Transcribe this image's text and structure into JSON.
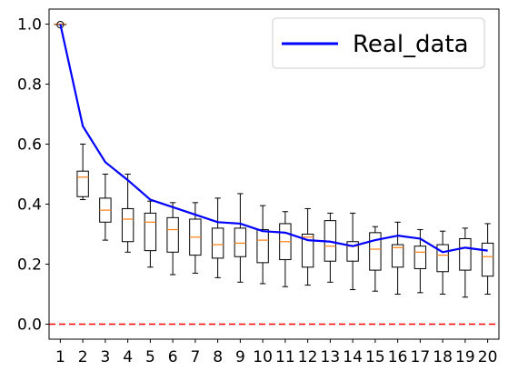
{
  "chart_data": {
    "type": "box",
    "title": "",
    "xlabel": "",
    "ylabel": "",
    "xlim": [
      0.5,
      20.5
    ],
    "ylim": [
      -0.05,
      1.05
    ],
    "x_ticks": [
      "1",
      "2",
      "3",
      "4",
      "5",
      "6",
      "7",
      "8",
      "9",
      "10",
      "11",
      "12",
      "13",
      "14",
      "15",
      "16",
      "17",
      "18",
      "19",
      "20"
    ],
    "y_ticks": [
      "0.0",
      "0.2",
      "0.4",
      "0.6",
      "0.8",
      "1.0"
    ],
    "y_tick_values": [
      0.0,
      0.2,
      0.4,
      0.6,
      0.8,
      1.0
    ],
    "grid": false,
    "legend": {
      "position": "top-right",
      "entries": [
        "Real_data"
      ]
    },
    "boxes": [
      {
        "x": 1,
        "whislo": 1.0,
        "q1": 1.0,
        "med": 1.0,
        "q3": 1.0,
        "whishi": 1.0,
        "fliers": [
          0.998
        ]
      },
      {
        "x": 2,
        "whislo": 0.415,
        "q1": 0.425,
        "med": 0.49,
        "q3": 0.51,
        "whishi": 0.6,
        "fliers": []
      },
      {
        "x": 3,
        "whislo": 0.28,
        "q1": 0.34,
        "med": 0.38,
        "q3": 0.42,
        "whishi": 0.5,
        "fliers": []
      },
      {
        "x": 4,
        "whislo": 0.24,
        "q1": 0.275,
        "med": 0.35,
        "q3": 0.385,
        "whishi": 0.5,
        "fliers": []
      },
      {
        "x": 5,
        "whislo": 0.19,
        "q1": 0.245,
        "med": 0.34,
        "q3": 0.37,
        "whishi": 0.41,
        "fliers": []
      },
      {
        "x": 6,
        "whislo": 0.165,
        "q1": 0.24,
        "med": 0.315,
        "q3": 0.355,
        "whishi": 0.405,
        "fliers": []
      },
      {
        "x": 7,
        "whislo": 0.17,
        "q1": 0.23,
        "med": 0.29,
        "q3": 0.35,
        "whishi": 0.405,
        "fliers": []
      },
      {
        "x": 8,
        "whislo": 0.155,
        "q1": 0.22,
        "med": 0.265,
        "q3": 0.32,
        "whishi": 0.42,
        "fliers": []
      },
      {
        "x": 9,
        "whislo": 0.14,
        "q1": 0.225,
        "med": 0.27,
        "q3": 0.32,
        "whishi": 0.435,
        "fliers": []
      },
      {
        "x": 10,
        "whislo": 0.135,
        "q1": 0.205,
        "med": 0.28,
        "q3": 0.315,
        "whishi": 0.395,
        "fliers": []
      },
      {
        "x": 11,
        "whislo": 0.125,
        "q1": 0.215,
        "med": 0.275,
        "q3": 0.335,
        "whishi": 0.375,
        "fliers": []
      },
      {
        "x": 12,
        "whislo": 0.13,
        "q1": 0.19,
        "med": 0.29,
        "q3": 0.3,
        "whishi": 0.385,
        "fliers": []
      },
      {
        "x": 13,
        "whislo": 0.14,
        "q1": 0.21,
        "med": 0.26,
        "q3": 0.345,
        "whishi": 0.37,
        "fliers": []
      },
      {
        "x": 14,
        "whislo": 0.115,
        "q1": 0.21,
        "med": 0.26,
        "q3": 0.275,
        "whishi": 0.37,
        "fliers": []
      },
      {
        "x": 15,
        "whislo": 0.11,
        "q1": 0.18,
        "med": 0.25,
        "q3": 0.305,
        "whishi": 0.325,
        "fliers": []
      },
      {
        "x": 16,
        "whislo": 0.1,
        "q1": 0.19,
        "med": 0.255,
        "q3": 0.265,
        "whishi": 0.34,
        "fliers": []
      },
      {
        "x": 17,
        "whislo": 0.105,
        "q1": 0.185,
        "med": 0.24,
        "q3": 0.26,
        "whishi": 0.315,
        "fliers": []
      },
      {
        "x": 18,
        "whislo": 0.1,
        "q1": 0.175,
        "med": 0.23,
        "q3": 0.265,
        "whishi": 0.31,
        "fliers": []
      },
      {
        "x": 19,
        "whislo": 0.09,
        "q1": 0.18,
        "med": 0.255,
        "q3": 0.285,
        "whishi": 0.32,
        "fliers": []
      },
      {
        "x": 20,
        "whislo": 0.1,
        "q1": 0.16,
        "med": 0.225,
        "q3": 0.27,
        "whishi": 0.335,
        "fliers": []
      }
    ],
    "series": [
      {
        "name": "Real_data",
        "type": "line",
        "color": "#0000ff",
        "x": [
          1,
          2,
          3,
          4,
          5,
          6,
          7,
          8,
          9,
          10,
          11,
          12,
          13,
          14,
          15,
          16,
          17,
          18,
          19,
          20
        ],
        "values": [
          1.0,
          0.66,
          0.54,
          0.48,
          0.415,
          0.39,
          0.365,
          0.34,
          0.335,
          0.31,
          0.305,
          0.28,
          0.275,
          0.26,
          0.28,
          0.295,
          0.285,
          0.24,
          0.255,
          0.245
        ]
      }
    ],
    "reference_line": {
      "y": 0.0,
      "color": "#ff0000",
      "style": "dashed"
    },
    "colors": {
      "box": "#000000",
      "median": "#ff7f0e",
      "line": "#0000ff",
      "reference": "#ff0000"
    }
  }
}
